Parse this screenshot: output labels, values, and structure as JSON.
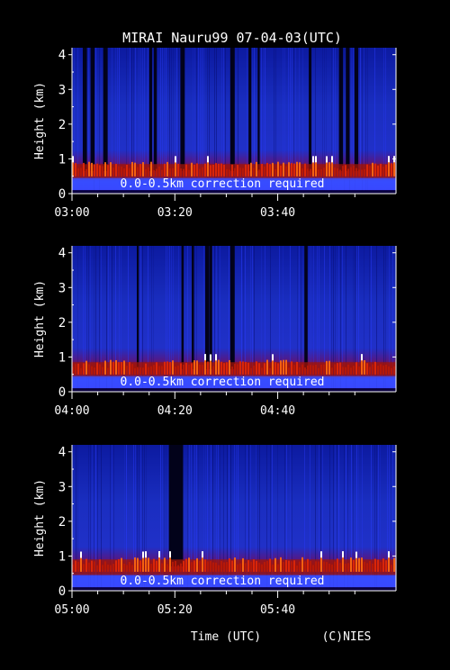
{
  "chart_data": {
    "type": "heatmap",
    "title": "MIRAI Nauru99 07-04-03(UTC)",
    "xlabel": "Time (UTC)",
    "ylabel": "Height (km)",
    "credit": "(C)NIES",
    "annotation": "0.0-0.5km correction required",
    "yticks": [
      "0",
      "1",
      "2",
      "3",
      "4"
    ],
    "ylim": [
      0,
      4.2
    ],
    "colors": {
      "background": "#000000",
      "low_signal": "#1030e0",
      "mid_signal": "#cc1800",
      "high_signal": "#ffffff"
    },
    "panels": [
      {
        "xticks": [
          "03:00",
          "03:20",
          "03:40"
        ],
        "xlim_minutes": [
          0,
          63
        ],
        "cloud_base_km": 0.6,
        "dark_columns_minutes": [
          2.5,
          4,
          6.5,
          15.3,
          16.2,
          21.5,
          31.2,
          34.6,
          36.3,
          46.3,
          52.3,
          53.6,
          55.3
        ]
      },
      {
        "xticks": [
          "04:00",
          "04:20",
          "04:40"
        ],
        "xlim_minutes": [
          0,
          63
        ],
        "cloud_base_km": 0.6,
        "dark_columns_minutes": [
          12.8,
          21.5,
          23.5,
          26.3,
          27,
          31.2,
          45.5
        ]
      },
      {
        "xticks": [
          "05:00",
          "05:20",
          "05:40"
        ],
        "xlim_minutes": [
          0,
          63
        ],
        "cloud_base_km": 0.65,
        "dark_columns_minutes": [
          19.2,
          19.8,
          20.3,
          20.8,
          21.2
        ]
      }
    ]
  }
}
